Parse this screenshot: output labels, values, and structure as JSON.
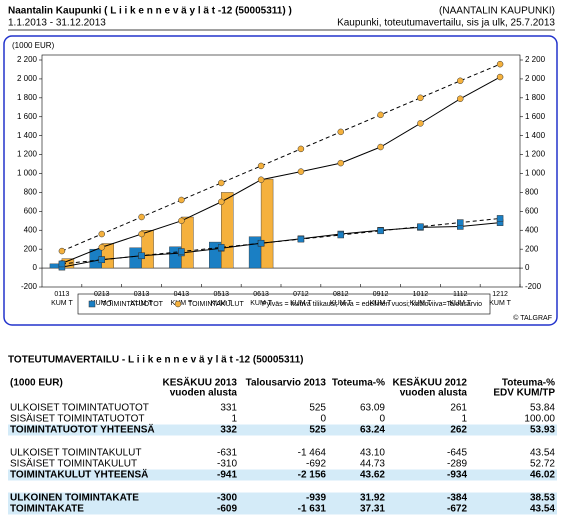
{
  "header": {
    "title": "Naantalin Kaupunki ( L i i k e n n e v ä y l ä t -12 (50005311) )",
    "period": "1.1.2013 - 31.12.2013",
    "organization": "(NAANTALIN KAUPUNKI)",
    "subtitle": "Kaupunki, toteutumavertailu, sis ja ulk, 25.7.2013"
  },
  "chart_data": {
    "type": "bar",
    "y_label": "(1000 EUR)",
    "categories": [
      [
        "0113",
        "KUM T"
      ],
      [
        "0213",
        "KUM T"
      ],
      [
        "0313",
        "KUM T"
      ],
      [
        "0413",
        "KUM T"
      ],
      [
        "0513",
        "KUM T"
      ],
      [
        "0613",
        "KUM T"
      ],
      [
        "0712",
        "KUM T"
      ],
      [
        "0812",
        "KUM T"
      ],
      [
        "0912",
        "KUM T"
      ],
      [
        "1012",
        "KUM T"
      ],
      [
        "1112",
        "KUM T"
      ],
      [
        "1212",
        "KUM T"
      ]
    ],
    "ylim": [
      -200,
      2200
    ],
    "yticks": [
      -200,
      0,
      200,
      400,
      600,
      800,
      {
        "value": 1000,
        "label": "1 000"
      },
      {
        "value": 1200,
        "label": "1 200"
      },
      {
        "value": 1400,
        "label": "1 400"
      },
      {
        "value": 1600,
        "label": "1 600"
      },
      {
        "value": 1800,
        "label": "1 800"
      },
      {
        "value": 2000,
        "label": "2 000"
      },
      {
        "value": 2200,
        "label": "2 200"
      }
    ],
    "series": [
      {
        "name": "TOIMINTATUOTOT",
        "color": "#1a7fc4",
        "values": [
          45,
          200,
          215,
          225,
          275,
          332,
          null,
          null,
          null,
          null,
          null,
          null
        ]
      },
      {
        "name": "TOIMINTAKULUT",
        "color": "#f5b13d",
        "values": [
          100,
          260,
          400,
          540,
          800,
          941,
          null,
          null,
          null,
          null,
          null,
          null
        ]
      }
    ],
    "lines": [
      {
        "style": "solid",
        "marker": "square",
        "color": "#000000",
        "marker_color": "#1a7fc4",
        "values": [
          10,
          90,
          130,
          160,
          210,
          262,
          310,
          360,
          400,
          430,
          440,
          480
        ]
      },
      {
        "style": "solid",
        "marker": "circle",
        "color": "#000000",
        "marker_color": "#f5b13d",
        "values": [
          50,
          220,
          360,
          500,
          700,
          934,
          1020,
          1110,
          1280,
          1530,
          1790,
          2020
        ]
      },
      {
        "style": "dashed",
        "marker": "square",
        "color": "#000000",
        "marker_color": "#1a7fc4",
        "values": [
          44,
          88,
          131,
          175,
          219,
          263,
          306,
          350,
          394,
          438,
          481,
          525
        ]
      },
      {
        "style": "dashed",
        "marker": "circle",
        "color": "#000000",
        "marker_color": "#f5b13d",
        "values": [
          180,
          360,
          540,
          720,
          900,
          1080,
          1260,
          1440,
          1620,
          1800,
          1980,
          2156
        ]
      }
    ],
    "legend_note": "Pylväs = kuluva tilikausi; viiva = edellinen vuosi; katkoviiva=Talousarvio",
    "credit": "© TALGRAF"
  },
  "table": {
    "title": "TOTEUTUMAVERTAILU - L i i k e n n e v ä y l ä t -12 (50005311)",
    "header": [
      [
        "(1000 EUR)"
      ],
      [
        "KESÄKUU 2013",
        "vuoden alusta"
      ],
      [
        "Talousarvio 2013"
      ],
      [
        "Toteuma-%"
      ],
      [
        "KESÄKUU 2012",
        "vuoden alusta"
      ],
      [
        "Toteuma-%",
        "EDV KUM/TP"
      ]
    ],
    "highlight_color": "#d4ebf8",
    "groups": [
      [
        {
          "cells": [
            "ULKOISET TOIMINTATUOTOT",
            "331",
            "525",
            "63.09",
            "261",
            "53.84"
          ],
          "highlight": false
        },
        {
          "cells": [
            "SISÄISET TOIMINTATUOTOT",
            "1",
            "0",
            "0",
            "1",
            "100.00"
          ],
          "highlight": false
        },
        {
          "cells": [
            "TOIMINTATUOTOT YHTEENSÄ",
            "332",
            "525",
            "63.24",
            "262",
            "53.93"
          ],
          "highlight": true
        }
      ],
      [
        {
          "cells": [
            "ULKOISET TOIMINTAKULUT",
            "-631",
            "-1 464",
            "43.10",
            "-645",
            "43.54"
          ],
          "highlight": false
        },
        {
          "cells": [
            "SISÄISET TOIMINTAKULUT",
            "-310",
            "-692",
            "44.73",
            "-289",
            "52.72"
          ],
          "highlight": false
        },
        {
          "cells": [
            "TOIMINTAKULUT YHTEENSÄ",
            "-941",
            "-2 156",
            "43.62",
            "-934",
            "46.02"
          ],
          "highlight": true
        }
      ],
      [
        {
          "cells": [
            "ULKOINEN TOIMINTAKATE",
            "-300",
            "-939",
            "31.92",
            "-384",
            "38.53"
          ],
          "highlight": true
        },
        {
          "cells": [
            "TOIMINTAKATE",
            "-609",
            "-1 631",
            "37.31",
            "-672",
            "43.54"
          ],
          "highlight": true
        }
      ]
    ]
  }
}
